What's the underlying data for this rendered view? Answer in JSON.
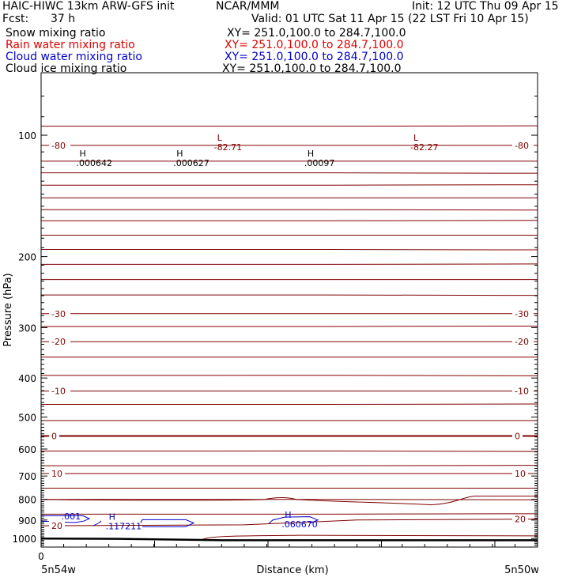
{
  "header": {
    "title_left": "HAIC-HIWC 13km ARW-GFS init",
    "org": "NCAR/MMM",
    "init": "Init: 12 UTC Thu 09 Apr 15",
    "fcst_label": "Fcst:",
    "fcst_value": "37 h",
    "valid": "Valid: 01 UTC Sat 11 Apr 15 (22 LST Fri 10 Apr 15)"
  },
  "fields": [
    {
      "name": "Snow mixing ratio",
      "xy": "XY= 251.0,100.0 to 284.7,100.0",
      "color": "#000000"
    },
    {
      "name": "Rain water mixing ratio",
      "xy": "XY= 251.0,100.0 to 284.7,100.0",
      "color": "#e00000"
    },
    {
      "name": "Cloud water mixing ratio",
      "xy": "XY= 251.0,100.0 to 284.7,100.0",
      "color": "#0000c8"
    },
    {
      "name": "Cloud ice mixing ratio",
      "xy": "XY= 251.0,100.0 to 284.7,100.0",
      "color": "#000000"
    }
  ],
  "colors": {
    "temperature": "#800000",
    "cloud_water": "#0000c8",
    "terrain": "#000000"
  },
  "chart_data": {
    "type": "line",
    "ylabel": "Pressure (hPa)",
    "xlabel": "Distance (km)",
    "y_scale": "log",
    "ylim": [
      1050,
      70
    ],
    "y_ticks": [
      100,
      200,
      300,
      400,
      500,
      600,
      700,
      800,
      900,
      1000
    ],
    "x_tick_labels": [
      "0"
    ],
    "x_end_labels": [
      "5n54w",
      "5n50w"
    ],
    "xlim": [
      0,
      22
    ],
    "temperature_contours": [
      {
        "value": -80,
        "label": "-80",
        "pressure": [
          106,
          106
        ],
        "x": [
          0,
          22
        ]
      },
      {
        "value": -30,
        "label": "-30",
        "pressure": [
          277,
          277
        ],
        "x": [
          0,
          22
        ]
      },
      {
        "value": -20,
        "label": "-20",
        "pressure": [
          325,
          325
        ],
        "x": [
          0,
          22
        ]
      },
      {
        "value": -10,
        "label": "-10",
        "pressure": [
          431,
          431
        ],
        "x": [
          0,
          22
        ]
      },
      {
        "value": 0,
        "label": "0",
        "pressure": [
          557,
          557
        ],
        "x": [
          0,
          22
        ]
      },
      {
        "value": 10,
        "label": "10",
        "pressure": [
          690,
          690
        ],
        "x": [
          0,
          22
        ]
      },
      {
        "value": 20,
        "label": "20",
        "pressure": [
          930,
          925,
          900,
          895
        ],
        "x": [
          0,
          9,
          14,
          22
        ]
      }
    ],
    "extrema_labels": [
      {
        "kind": "H",
        "value": ".000642",
        "x": 1.7,
        "p": 115,
        "color": "#000000"
      },
      {
        "kind": "H",
        "value": ".000627",
        "x": 6.0,
        "p": 115,
        "color": "#000000"
      },
      {
        "kind": "H",
        "value": ".00097",
        "x": 11.8,
        "p": 115,
        "color": "#000000"
      },
      {
        "kind": "L",
        "value": "-82.71",
        "x": 7.8,
        "p": 105,
        "color": "#800000"
      },
      {
        "kind": "L",
        "value": "-82.27",
        "x": 16.5,
        "p": 105,
        "color": "#800000"
      },
      {
        "kind": "H",
        "value": ".117211",
        "x": 3.0,
        "p": 915,
        "color": "#0000c8"
      },
      {
        "kind": "H",
        "value": ".060670",
        "x": 10.8,
        "p": 905,
        "color": "#0000c8"
      }
    ],
    "cloud_water_labels": [
      {
        "value": ".001",
        "x": 0.9,
        "p": 880
      }
    ],
    "terrain": {
      "x": [
        0,
        3.5,
        8.0,
        22
      ],
      "pressure": [
        1000,
        1002,
        1010,
        1010
      ]
    }
  }
}
